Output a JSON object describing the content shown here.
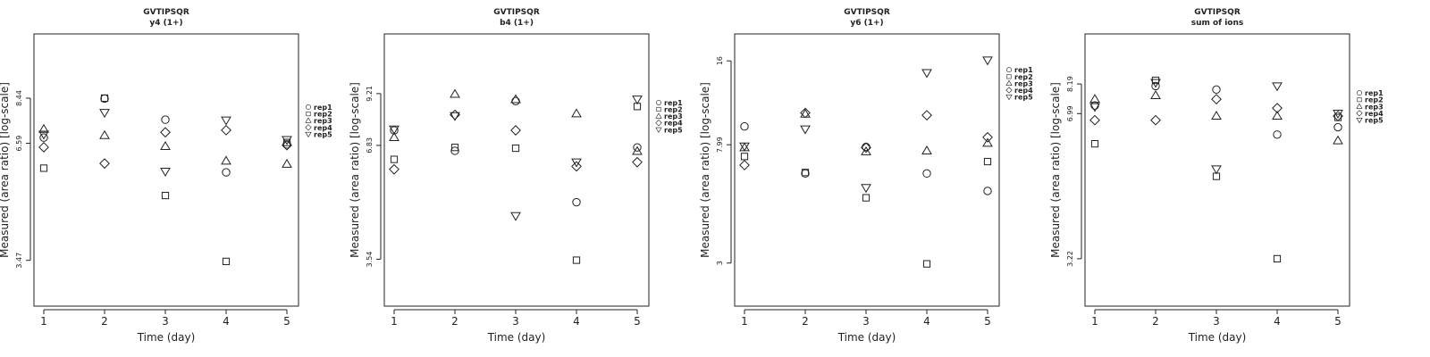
{
  "chart_data": [
    {
      "type": "scatter",
      "title": "GVTIPSQR",
      "subtitle": "y4 (1+)",
      "xlabel": "Time (day)",
      "ylabel": "Measured (area ratio) [log-scale]",
      "log_y": true,
      "x_ticks": [
        "1",
        "2",
        "3",
        "4",
        "5"
      ],
      "y_ticks": [
        {
          "value": 8.44,
          "label": "8.44"
        },
        {
          "value": 6.59,
          "label": "6.59"
        },
        {
          "value": 3.47,
          "label": "3.47"
        }
      ],
      "ylim": [
        2.7,
        12
      ],
      "legend_position": "right",
      "series": [
        {
          "name": "rep1",
          "marker": "circle",
          "x": [
            1,
            2,
            3,
            4,
            5
          ],
          "y": [
            6.8,
            8.42,
            7.5,
            5.62,
            6.55
          ]
        },
        {
          "name": "rep2",
          "marker": "square",
          "x": [
            1,
            2,
            3,
            4,
            5
          ],
          "y": [
            5.75,
            8.44,
            4.95,
            3.45,
            6.62
          ]
        },
        {
          "name": "rep3",
          "marker": "triangle-up",
          "x": [
            1,
            2,
            3,
            4,
            5
          ],
          "y": [
            7.12,
            6.88,
            6.48,
            5.98,
            5.88
          ]
        },
        {
          "name": "rep4",
          "marker": "diamond",
          "x": [
            1,
            2,
            3,
            4,
            5
          ],
          "y": [
            6.45,
            5.9,
            7.0,
            7.08,
            6.52
          ]
        },
        {
          "name": "rep5",
          "marker": "triangle-down",
          "x": [
            1,
            2,
            3,
            4,
            5
          ],
          "y": [
            6.92,
            7.8,
            5.65,
            7.48,
            6.72
          ]
        }
      ]
    },
    {
      "type": "scatter",
      "title": "GVTIPSQR",
      "subtitle": "b4 (1+)",
      "xlabel": "Time (day)",
      "ylabel": "Measured (area ratio) [log-scale]",
      "log_y": true,
      "x_ticks": [
        "1",
        "2",
        "3",
        "4",
        "5"
      ],
      "y_ticks": [
        {
          "value": 9.21,
          "label": "9.21"
        },
        {
          "value": 6.83,
          "label": "6.83"
        },
        {
          "value": 3.54,
          "label": "3.54"
        }
      ],
      "ylim": [
        2.7,
        13
      ],
      "legend_position": "right",
      "series": [
        {
          "name": "rep1",
          "marker": "circle",
          "x": [
            1,
            2,
            3,
            4,
            5
          ],
          "y": [
            7.45,
            6.62,
            8.82,
            4.92,
            6.75
          ]
        },
        {
          "name": "rep2",
          "marker": "square",
          "x": [
            1,
            2,
            3,
            4,
            5
          ],
          "y": [
            6.3,
            6.75,
            6.72,
            3.52,
            8.55
          ]
        },
        {
          "name": "rep3",
          "marker": "triangle-up",
          "x": [
            1,
            2,
            3,
            4,
            5
          ],
          "y": [
            7.15,
            9.18,
            8.9,
            8.2,
            6.6
          ]
        },
        {
          "name": "rep4",
          "marker": "diamond",
          "x": [
            1,
            2,
            3,
            4,
            5
          ],
          "y": [
            5.95,
            8.15,
            7.45,
            6.05,
            6.2
          ]
        },
        {
          "name": "rep5",
          "marker": "triangle-down",
          "x": [
            1,
            2,
            3,
            4,
            5
          ],
          "y": [
            7.5,
            8.1,
            4.55,
            6.2,
            8.92
          ]
        }
      ]
    },
    {
      "type": "scatter",
      "title": "GVTIPSQR",
      "subtitle": "y6 (1+)",
      "xlabel": "Time (day)",
      "ylabel": "Measured (area ratio) [log-scale]",
      "log_y": true,
      "x_ticks": [
        "1",
        "2",
        "3",
        "4",
        "5"
      ],
      "y_ticks": [
        {
          "value": 16,
          "label": "16"
        },
        {
          "value": 7.99,
          "label": "7.99"
        },
        {
          "value": 3,
          "label": "3"
        }
      ],
      "ylim": [
        2.1,
        20
      ],
      "legend_position": "right",
      "series": [
        {
          "name": "rep1",
          "marker": "circle",
          "x": [
            1,
            2,
            3,
            4,
            5
          ],
          "y": [
            9.3,
            6.3,
            7.85,
            6.3,
            5.45
          ]
        },
        {
          "name": "rep2",
          "marker": "square",
          "x": [
            1,
            2,
            3,
            4,
            5
          ],
          "y": [
            7.25,
            6.35,
            5.15,
            2.98,
            6.95
          ]
        },
        {
          "name": "rep3",
          "marker": "triangle-up",
          "x": [
            1,
            2,
            3,
            4,
            5
          ],
          "y": [
            7.8,
            10.3,
            7.55,
            7.6,
            8.1
          ]
        },
        {
          "name": "rep4",
          "marker": "diamond",
          "x": [
            1,
            2,
            3,
            4,
            5
          ],
          "y": [
            6.75,
            10.4,
            7.8,
            10.2,
            8.5
          ]
        },
        {
          "name": "rep5",
          "marker": "triangle-down",
          "x": [
            1,
            2,
            3,
            4,
            5
          ],
          "y": [
            7.9,
            9.1,
            5.6,
            14.5,
            16.1
          ]
        }
      ]
    },
    {
      "type": "scatter",
      "title": "GVTIPSQR",
      "subtitle": "sum of ions",
      "xlabel": "Time (day)",
      "ylabel": "Measured (area ratio) [log-scale]",
      "log_y": true,
      "x_ticks": [
        "1",
        "2",
        "3",
        "4",
        "5"
      ],
      "y_ticks": [
        {
          "value": 8.19,
          "label": "8.19"
        },
        {
          "value": 6.99,
          "label": "6.99"
        },
        {
          "value": 3.22,
          "label": "3.22"
        }
      ],
      "ylim": [
        2.5,
        10.7
      ],
      "legend_position": "right",
      "series": [
        {
          "name": "rep1",
          "marker": "circle",
          "x": [
            1,
            2,
            3,
            4,
            5
          ],
          "y": [
            7.3,
            8.1,
            7.95,
            6.25,
            6.5
          ]
        },
        {
          "name": "rep2",
          "marker": "square",
          "x": [
            1,
            2,
            3,
            4,
            5
          ],
          "y": [
            5.95,
            8.35,
            5.0,
            3.22,
            6.85
          ]
        },
        {
          "name": "rep3",
          "marker": "triangle-up",
          "x": [
            1,
            2,
            3,
            4,
            5
          ],
          "y": [
            7.55,
            7.7,
            6.9,
            6.9,
            6.05
          ]
        },
        {
          "name": "rep4",
          "marker": "diamond",
          "x": [
            1,
            2,
            3,
            4,
            5
          ],
          "y": [
            6.75,
            6.75,
            7.55,
            7.2,
            6.9
          ]
        },
        {
          "name": "rep5",
          "marker": "triangle-down",
          "x": [
            1,
            2,
            3,
            4,
            5
          ],
          "y": [
            7.25,
            8.25,
            5.2,
            8.1,
            7.0
          ]
        }
      ]
    }
  ]
}
